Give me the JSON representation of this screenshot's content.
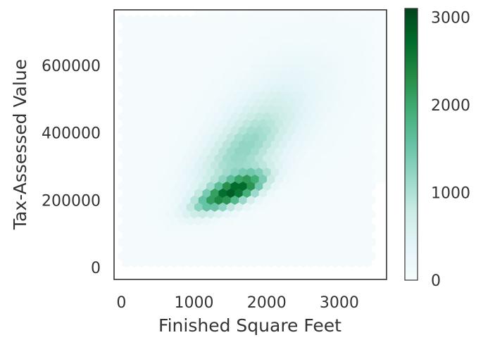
{
  "chart_data": {
    "type": "heatmap",
    "subtype": "hexbin",
    "title": "",
    "xlabel": "Finished Square Feet",
    "ylabel": "Tax-Assessed Value",
    "xlim": [
      -100,
      3650
    ],
    "ylim": [
      -35000,
      765000
    ],
    "x_ticks": [
      0,
      1000,
      2000,
      3000
    ],
    "x_tick_labels": [
      "0",
      "1000",
      "2000",
      "3000"
    ],
    "y_ticks": [
      0,
      200000,
      400000,
      600000
    ],
    "y_tick_labels": [
      "0",
      "200000",
      "400000",
      "600000"
    ],
    "grid": false,
    "colorscale": {
      "name": "BuGn",
      "min": 0,
      "max": 3100,
      "ticks": [
        0,
        1000,
        2000,
        3000
      ],
      "tick_labels": [
        "0",
        "1000",
        "2000",
        "3000"
      ],
      "colors": [
        "#f7fcfd",
        "#e5f5f9",
        "#ccece6",
        "#99d8c9",
        "#66c2a4",
        "#41ae76",
        "#238b45",
        "#006d2c",
        "#00441b"
      ]
    },
    "density_model": {
      "background_range": {
        "x": [
          0,
          3500
        ],
        "y": [
          0,
          740000
        ],
        "count": 40
      },
      "clusters": [
        {
          "cx": 1650,
          "cy": 235000,
          "sx": 260,
          "sy": 35000,
          "corr": 0.6,
          "amp": 2100
        },
        {
          "cx": 1250,
          "cy": 200000,
          "sx": 240,
          "sy": 32000,
          "corr": 0.6,
          "amp": 1200
        },
        {
          "cx": 1600,
          "cy": 330000,
          "sx": 420,
          "sy": 85000,
          "corr": 0.65,
          "amp": 800
        },
        {
          "cx": 1900,
          "cy": 420000,
          "sx": 520,
          "sy": 110000,
          "corr": 0.55,
          "amp": 420
        },
        {
          "cx": 2300,
          "cy": 500000,
          "sx": 700,
          "sy": 160000,
          "corr": 0.4,
          "amp": 120
        }
      ]
    }
  }
}
